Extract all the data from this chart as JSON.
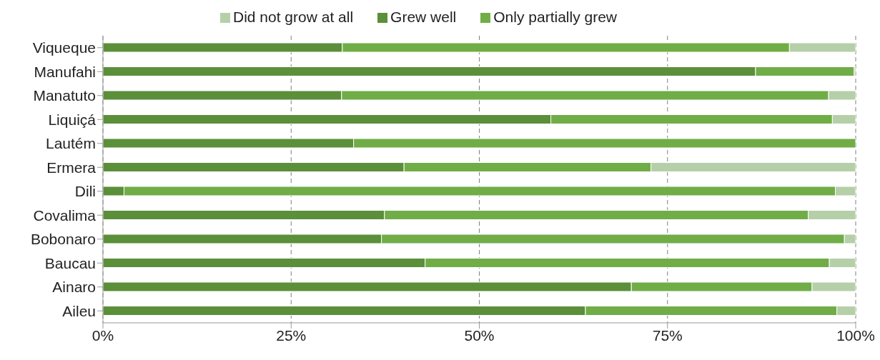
{
  "chart_data": {
    "type": "bar",
    "orientation": "horizontal",
    "stacked": true,
    "categories": [
      "Viqueque",
      "Manufahi",
      "Manatuto",
      "Liquiçá",
      "Lautém",
      "Ermera",
      "Dili",
      "Covalima",
      "Bobonaro",
      "Baucau",
      "Ainaro",
      "Aileu"
    ],
    "series": [
      {
        "name": "Grew well",
        "color": "#5b8f3a",
        "values": [
          31.8,
          86.7,
          31.7,
          59.5,
          33.3,
          40.0,
          2.8,
          37.4,
          37.0,
          42.8,
          70.2,
          64.1
        ]
      },
      {
        "name": "Only partially grew",
        "color": "#70ad47",
        "values": [
          59.4,
          13.1,
          64.7,
          37.4,
          66.7,
          32.8,
          94.5,
          56.3,
          61.5,
          53.7,
          24.0,
          33.4
        ]
      },
      {
        "name": "Did not grow at all",
        "color": "#b5d0a8",
        "values": [
          8.8,
          0.2,
          3.6,
          3.1,
          0,
          27.2,
          2.7,
          6.3,
          1.5,
          3.5,
          5.8,
          2.5
        ]
      }
    ],
    "xlim": [
      0,
      100
    ],
    "xticks": [
      {
        "value": 0,
        "label": "0%"
      },
      {
        "value": 25,
        "label": "25%"
      },
      {
        "value": 50,
        "label": "50%"
      },
      {
        "value": 75,
        "label": "75%"
      },
      {
        "value": 100,
        "label": "100%"
      }
    ],
    "grid": "x",
    "legend": "top"
  }
}
